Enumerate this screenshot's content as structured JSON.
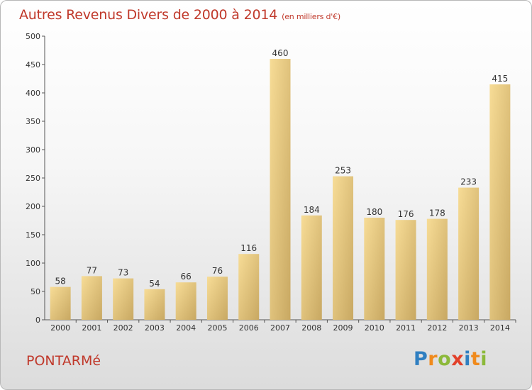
{
  "title": "Autres Revenus Divers de 2000 à 2014",
  "unit": "(en milliers d'€)",
  "town": "PONTARMé",
  "logo": {
    "text": "Proxiti",
    "letters": [
      {
        "ch": "P",
        "color": "#2f7fc1"
      },
      {
        "ch": "r",
        "color": "#f08a1c"
      },
      {
        "ch": "o",
        "color": "#8cb93a"
      },
      {
        "ch": "x",
        "color": "#e2412b"
      },
      {
        "ch": "i",
        "color": "#2f7fc1"
      },
      {
        "ch": "t",
        "color": "#f08a1c"
      },
      {
        "ch": "i",
        "color": "#8cb93a"
      }
    ]
  },
  "colors": {
    "bar_light": "#f7dc96",
    "bar_dark": "#c8a862",
    "title": "#c0392b"
  },
  "chart_data": {
    "type": "bar",
    "categories": [
      "2000",
      "2001",
      "2002",
      "2003",
      "2004",
      "2005",
      "2006",
      "2007",
      "2008",
      "2009",
      "2010",
      "2011",
      "2012",
      "2013",
      "2014"
    ],
    "values": [
      58,
      77,
      73,
      54,
      66,
      76,
      116,
      460,
      184,
      253,
      180,
      176,
      178,
      233,
      415
    ],
    "title": "Autres Revenus Divers de 2000 à 2014",
    "xlabel": "",
    "ylabel": "",
    "ylim": [
      0,
      500
    ],
    "yticks": [
      0,
      50,
      100,
      150,
      200,
      250,
      300,
      350,
      400,
      450,
      500
    ],
    "grid": false,
    "data_labels": true
  }
}
